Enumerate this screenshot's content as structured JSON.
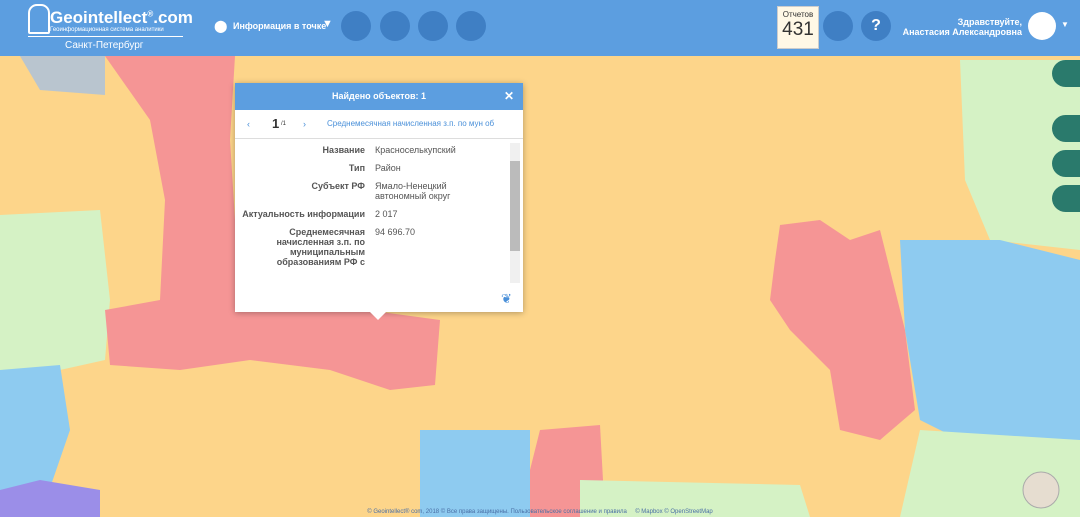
{
  "header": {
    "logo": {
      "name": "Geointellect",
      "reg": "®",
      "suffix": ".com",
      "tagline": "Геоинформационная система аналитики",
      "city": "Санкт-Петербург"
    },
    "mode": "Информация в точке",
    "reports": {
      "label": "Отчетов",
      "count": 431
    },
    "user": {
      "greeting": "Здравствуйте,",
      "name": "Анастасия Александровна"
    }
  },
  "popup": {
    "title": "Найдено объектов: 1",
    "page": {
      "current": "1",
      "total": "/1"
    },
    "layer": "Среднемесячная начисленная з.п. по мун об",
    "rows": [
      [
        "Название",
        "Красноселькупский"
      ],
      [
        "Тип",
        "Район"
      ],
      [
        "Субъект РФ",
        "Ямало-Ненецкий автономный округ"
      ],
      [
        "Актуальность информации",
        "2 017"
      ],
      [
        "Среднемесячная начисленная з.п. по муниципальным образованиям РФ с",
        "94 696.70"
      ]
    ]
  },
  "footer": "© Geointellect® com, 2018 © Все права защищены. Пользовательское соглашение и правила     © Mapbox © OpenStreetMap"
}
